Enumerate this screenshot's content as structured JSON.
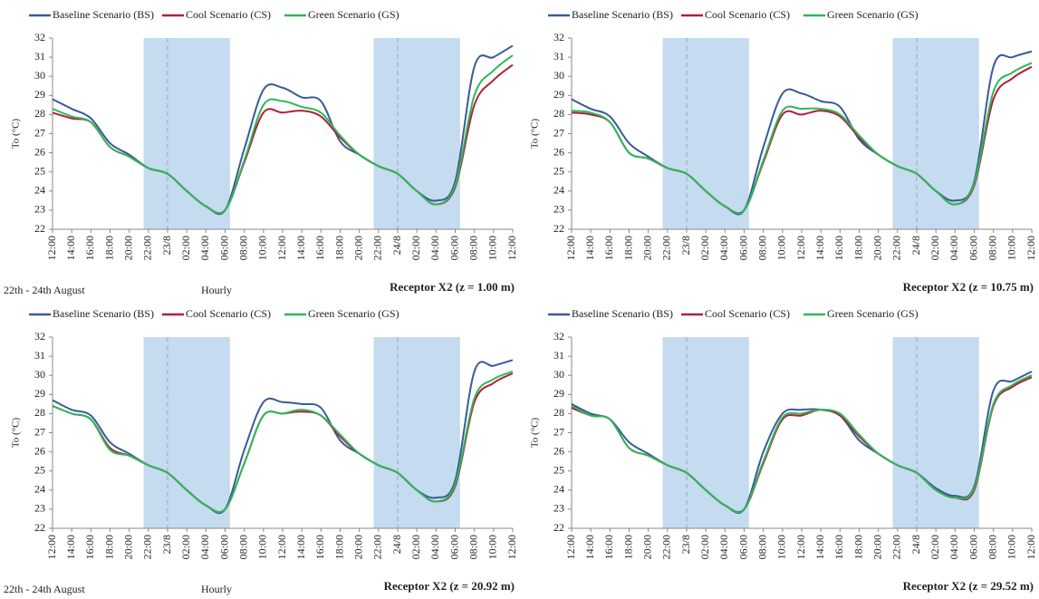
{
  "chart_data": [
    {
      "type": "line",
      "y_label": "To (°C)",
      "annotations": [
        "22th - 24th August",
        "Hourly",
        "Receptor X2 (z = 1.00 m)"
      ],
      "categories": [
        "12:00",
        "14:00",
        "16:00",
        "18:00",
        "20:00",
        "22:00",
        "23/8",
        "02:00",
        "04:00",
        "06:00",
        "08:00",
        "10:00",
        "12:00",
        "14:00",
        "16:00",
        "18:00",
        "20:00",
        "22:00",
        "24/8",
        "02:00",
        "04:00",
        "06:00",
        "08:00",
        "10:00",
        "12:00"
      ],
      "ylim": [
        22,
        32
      ],
      "yticks": [
        22,
        23,
        24,
        25,
        26,
        27,
        28,
        29,
        30,
        31,
        32
      ],
      "series": [
        {
          "name": "Baseline Scenario (BS)",
          "color": "#3a5a98",
          "values": [
            28.8,
            28.3,
            27.8,
            26.5,
            25.9,
            25.2,
            24.9,
            24.0,
            23.2,
            23.0,
            26.2,
            29.3,
            29.4,
            28.9,
            28.7,
            26.6,
            25.9,
            25.3,
            24.9,
            24.0,
            23.5,
            24.5,
            30.5,
            31.0,
            31.6
          ]
        },
        {
          "name": "Cool Scenario (CS)",
          "color": "#b0213a",
          "values": [
            28.1,
            27.8,
            27.6,
            26.3,
            25.8,
            25.2,
            24.9,
            24.0,
            23.2,
            23.0,
            25.5,
            28.1,
            28.1,
            28.2,
            27.9,
            26.8,
            25.9,
            25.3,
            24.9,
            24.0,
            23.3,
            24.2,
            28.5,
            29.8,
            30.6
          ]
        },
        {
          "name": "Green Scenario (GS)",
          "color": "#2db85a",
          "values": [
            28.3,
            27.9,
            27.6,
            26.3,
            25.8,
            25.2,
            24.9,
            24.0,
            23.2,
            23.0,
            25.6,
            28.5,
            28.7,
            28.4,
            28.1,
            26.9,
            25.9,
            25.3,
            24.9,
            24.0,
            23.3,
            24.3,
            29.0,
            30.3,
            31.1
          ]
        }
      ]
    },
    {
      "type": "line",
      "y_label": "To (°C)",
      "annotations": [
        "Receptor X2 (z = 10.75 m)"
      ],
      "categories": [
        "12:00",
        "14:00",
        "16:00",
        "18:00",
        "20:00",
        "22:00",
        "23/8",
        "02:00",
        "04:00",
        "06:00",
        "08:00",
        "10:00",
        "12:00",
        "14:00",
        "16:00",
        "18:00",
        "20:00",
        "22:00",
        "24/8",
        "02:00",
        "04:00",
        "06:00",
        "08:00",
        "10:00",
        "12:00"
      ],
      "ylim": [
        22,
        32
      ],
      "yticks": [
        22,
        23,
        24,
        25,
        26,
        27,
        28,
        29,
        30,
        31,
        32
      ],
      "series": [
        {
          "name": "Baseline Scenario (BS)",
          "color": "#3a5a98",
          "values": [
            28.8,
            28.3,
            27.9,
            26.5,
            25.8,
            25.2,
            24.9,
            24.0,
            23.2,
            23.0,
            26.3,
            29.1,
            29.1,
            28.7,
            28.4,
            26.7,
            25.9,
            25.3,
            24.9,
            24.0,
            23.5,
            24.5,
            30.5,
            31.0,
            31.3
          ]
        },
        {
          "name": "Cool Scenario (CS)",
          "color": "#b0213a",
          "values": [
            28.1,
            28.0,
            27.6,
            26.0,
            25.7,
            25.2,
            24.9,
            24.0,
            23.2,
            23.0,
            25.5,
            28.0,
            28.0,
            28.2,
            27.9,
            26.8,
            25.9,
            25.3,
            24.9,
            24.0,
            23.3,
            24.3,
            28.8,
            29.9,
            30.5
          ]
        },
        {
          "name": "Green Scenario (GS)",
          "color": "#2db85a",
          "values": [
            28.2,
            28.1,
            27.6,
            26.0,
            25.7,
            25.2,
            24.9,
            24.0,
            23.2,
            23.0,
            25.6,
            28.2,
            28.3,
            28.3,
            28.0,
            26.9,
            25.9,
            25.3,
            24.9,
            24.0,
            23.3,
            24.4,
            29.2,
            30.2,
            30.7
          ]
        }
      ]
    },
    {
      "type": "line",
      "y_label": "To (°C)",
      "annotations": [
        "22th - 24th August",
        "Hourly",
        "Receptor X2 (z = 20.92 m)"
      ],
      "categories": [
        "12:00",
        "14:00",
        "16:00",
        "18:00",
        "20:00",
        "22:00",
        "23/8",
        "02:00",
        "04:00",
        "06:00",
        "08:00",
        "10:00",
        "12:00",
        "14:00",
        "16:00",
        "18:00",
        "20:00",
        "22:00",
        "24/8",
        "02:00",
        "04:00",
        "06:00",
        "08:00",
        "10:00",
        "12:00"
      ],
      "ylim": [
        22,
        32
      ],
      "yticks": [
        22,
        23,
        24,
        25,
        26,
        27,
        28,
        29,
        30,
        31,
        32
      ],
      "series": [
        {
          "name": "Baseline Scenario (BS)",
          "color": "#3a5a98",
          "values": [
            28.7,
            28.2,
            27.9,
            26.5,
            25.9,
            25.3,
            24.9,
            24.0,
            23.2,
            23.0,
            26.1,
            28.6,
            28.6,
            28.5,
            28.3,
            26.6,
            25.9,
            25.3,
            24.9,
            24.0,
            23.6,
            24.5,
            30.2,
            30.5,
            30.8
          ]
        },
        {
          "name": "Cool Scenario (CS)",
          "color": "#b0213a",
          "values": [
            28.4,
            28.0,
            27.7,
            26.2,
            25.8,
            25.3,
            24.9,
            24.0,
            23.2,
            23.0,
            25.4,
            27.9,
            28.0,
            28.1,
            27.9,
            26.8,
            25.9,
            25.3,
            24.9,
            24.0,
            23.4,
            24.2,
            28.6,
            29.6,
            30.1
          ]
        },
        {
          "name": "Green Scenario (GS)",
          "color": "#2db85a",
          "values": [
            28.4,
            28.0,
            27.7,
            26.1,
            25.8,
            25.3,
            24.9,
            24.0,
            23.2,
            23.0,
            25.4,
            27.9,
            28.0,
            28.2,
            27.9,
            26.9,
            25.9,
            25.3,
            24.9,
            24.0,
            23.4,
            24.3,
            28.8,
            29.8,
            30.2
          ]
        }
      ]
    },
    {
      "type": "line",
      "y_label": "To (°C)",
      "annotations": [
        "Receptor X2 (z = 29.52 m)"
      ],
      "categories": [
        "12:00",
        "14:00",
        "16:00",
        "18:00",
        "20:00",
        "22:00",
        "23/8",
        "02:00",
        "04:00",
        "06:00",
        "08:00",
        "10:00",
        "12:00",
        "14:00",
        "16:00",
        "18:00",
        "20:00",
        "22:00",
        "24/8",
        "02:00",
        "04:00",
        "06:00",
        "08:00",
        "10:00",
        "12:00"
      ],
      "ylim": [
        22,
        32
      ],
      "yticks": [
        22,
        23,
        24,
        25,
        26,
        27,
        28,
        29,
        30,
        31,
        32
      ],
      "series": [
        {
          "name": "Baseline Scenario (BS)",
          "color": "#3a5a98",
          "values": [
            28.5,
            28.0,
            27.7,
            26.5,
            25.9,
            25.3,
            24.9,
            24.0,
            23.2,
            23.0,
            26.0,
            28.0,
            28.2,
            28.2,
            27.9,
            26.6,
            25.9,
            25.3,
            24.9,
            24.1,
            23.7,
            24.2,
            29.2,
            29.7,
            30.2
          ]
        },
        {
          "name": "Cool Scenario (CS)",
          "color": "#b0213a",
          "values": [
            28.3,
            27.9,
            27.7,
            26.2,
            25.8,
            25.3,
            24.9,
            24.0,
            23.2,
            23.0,
            25.4,
            27.7,
            27.9,
            28.2,
            27.9,
            26.8,
            25.9,
            25.3,
            24.9,
            24.0,
            23.6,
            24.0,
            28.4,
            29.4,
            29.9
          ]
        },
        {
          "name": "Green Scenario (GS)",
          "color": "#2db85a",
          "values": [
            28.4,
            27.9,
            27.7,
            26.2,
            25.8,
            25.3,
            24.9,
            24.0,
            23.2,
            23.0,
            25.5,
            27.8,
            28.0,
            28.2,
            28.0,
            26.9,
            25.9,
            25.3,
            24.9,
            24.0,
            23.6,
            24.1,
            28.5,
            29.5,
            30.0
          ]
        }
      ]
    }
  ]
}
